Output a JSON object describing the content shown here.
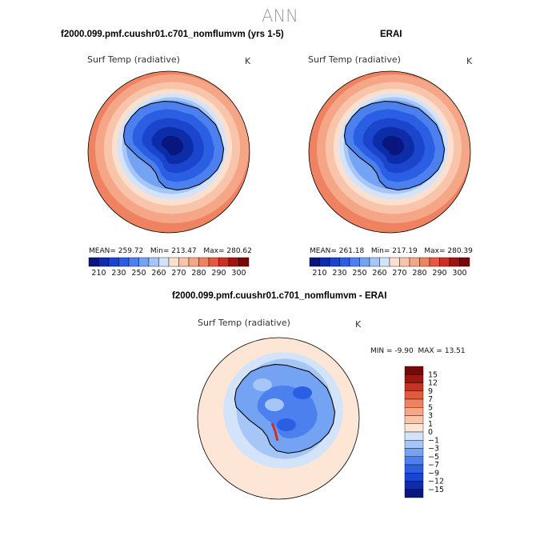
{
  "page": {
    "title": "ANN"
  },
  "colors": {
    "background": "#ffffff",
    "seq_scale": [
      "#08167d",
      "#0c2ca8",
      "#1a45cc",
      "#2b5fe3",
      "#4b80ee",
      "#75a3f4",
      "#a6c6f7",
      "#d3e3fa",
      "#fbe0d0",
      "#f8c4aa",
      "#f4a686",
      "#ee8261",
      "#e35a3c",
      "#c73223",
      "#a01410",
      "#780808"
    ],
    "diff_scale": [
      "#08167d",
      "#0c2ca8",
      "#1a45cc",
      "#2b5fe3",
      "#4b80ee",
      "#75a3f4",
      "#a6c6f7",
      "#d3e3fa",
      "#fde6d6",
      "#f8c4aa",
      "#f4a686",
      "#ee8261",
      "#e35a3c",
      "#c73223",
      "#a01410",
      "#780808"
    ]
  },
  "panels": [
    {
      "title": "f2000.099.pmf.cuushr01.c701_nomflumvm (yrs 1-5)",
      "variable": "Surf Temp (radiative)",
      "units": "K",
      "stats": {
        "mean_label": "MEAN=",
        "mean": "259.72",
        "min_label": "Min=",
        "min": "213.47",
        "max_label": "Max=",
        "max": "280.62"
      },
      "colorbar_labels": [
        "210",
        "230",
        "250",
        "260",
        "270",
        "280",
        "290",
        "300"
      ]
    },
    {
      "title": "ERAI",
      "variable": "Surf Temp (radiative)",
      "units": "K",
      "stats": {
        "mean_label": "MEAN=",
        "mean": "261.18",
        "min_label": "Min=",
        "min": "217.19",
        "max_label": "Max=",
        "max": "280.39"
      },
      "colorbar_labels": [
        "210",
        "230",
        "250",
        "260",
        "270",
        "280",
        "290",
        "300"
      ]
    },
    {
      "title": "f2000.099.pmf.cuushr01.c701_nomflumvm - ERAI",
      "variable": "Surf Temp (radiative)",
      "units": "K",
      "stats": {
        "min_label": "MIN =",
        "min": "-9.90",
        "max_label": "MAX =",
        "max": "13.51"
      },
      "colorbar_labels": [
        "15",
        "12",
        "9",
        "7",
        "5",
        "3",
        "1",
        "0",
        "−1",
        "−3",
        "−5",
        "−7",
        "−9",
        "−12",
        "−15"
      ]
    }
  ]
}
